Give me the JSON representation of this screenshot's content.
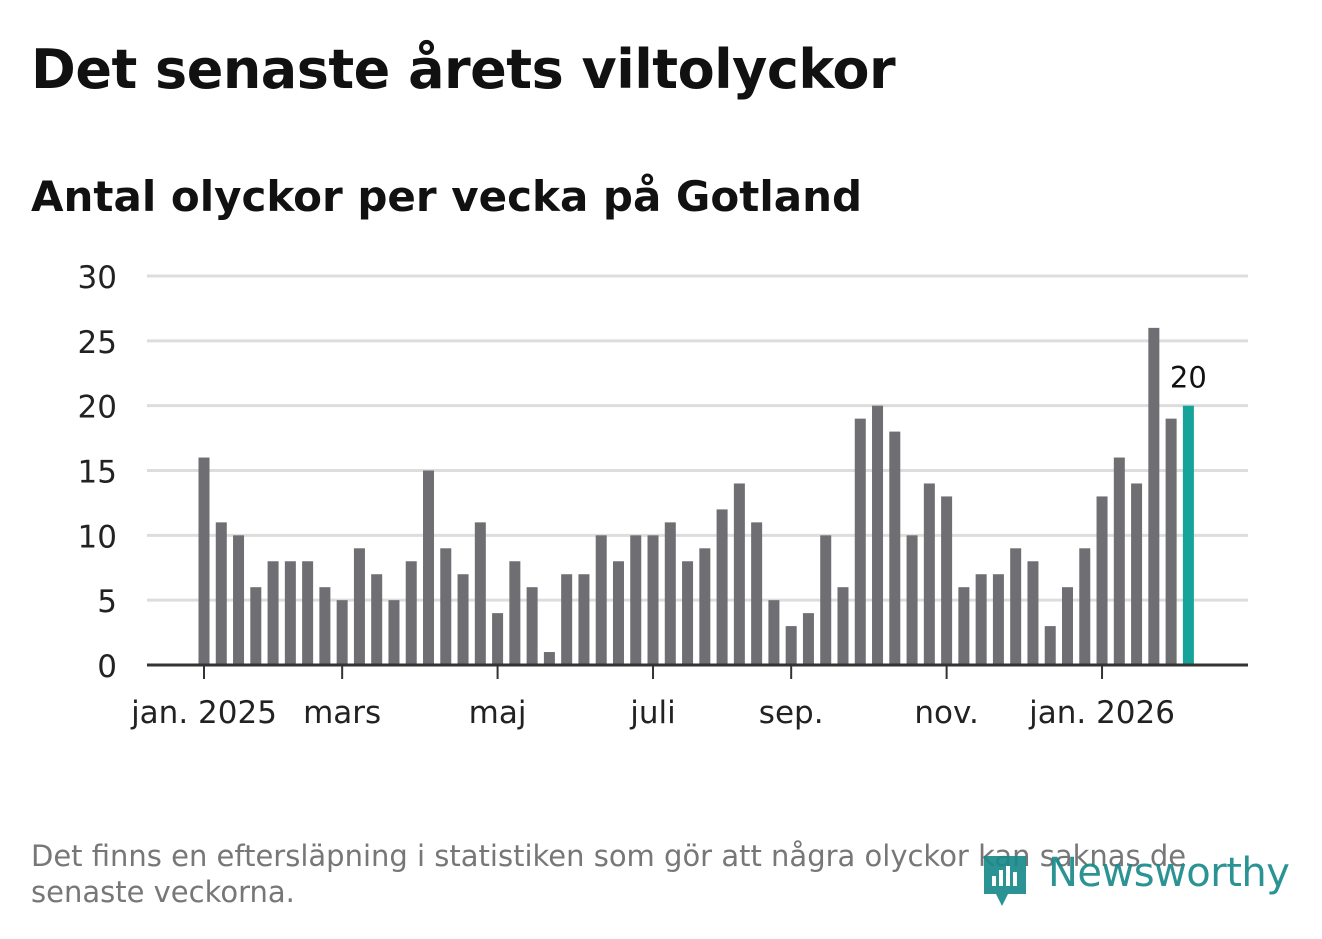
{
  "header": {
    "title": "Det senaste årets viltolyckor",
    "subtitle": "Antal olyckor per vecka på Gotland"
  },
  "footer": {
    "note": "Det finns en eftersläpning i statistiken som gör att några olyckor kan saknas de senaste veckorna.",
    "brand": "Newsworthy"
  },
  "colors": {
    "bar": "#6e6e73",
    "highlight": "#16a39a",
    "grid": "#dddddd",
    "axis": "#333333",
    "brand": "#1a8a8a"
  },
  "chart_data": {
    "type": "bar",
    "title": "Antal olyckor per vecka på Gotland",
    "xlabel": "",
    "ylabel": "",
    "ylim": [
      0,
      30
    ],
    "yticks": [
      0,
      5,
      10,
      15,
      20,
      25,
      30
    ],
    "grid": true,
    "values": [
      16,
      11,
      10,
      6,
      8,
      8,
      8,
      6,
      5,
      9,
      7,
      5,
      8,
      15,
      9,
      7,
      11,
      4,
      8,
      6,
      1,
      7,
      7,
      10,
      8,
      10,
      10,
      11,
      8,
      9,
      12,
      14,
      11,
      5,
      3,
      4,
      10,
      6,
      19,
      20,
      18,
      10,
      14,
      13,
      6,
      7,
      7,
      9,
      8,
      3,
      6,
      9,
      13,
      16,
      14,
      26,
      19,
      20
    ],
    "month_ticks": [
      {
        "label": "jan. 2025",
        "week_index": 0
      },
      {
        "label": "mars",
        "week_index": 8
      },
      {
        "label": "maj",
        "week_index": 17
      },
      {
        "label": "juli",
        "week_index": 26
      },
      {
        "label": "sep.",
        "week_index": 34
      },
      {
        "label": "nov.",
        "week_index": 43
      },
      {
        "label": "jan. 2026",
        "week_index": 52
      }
    ],
    "highlight_index": 57,
    "highlight_label": "20"
  }
}
